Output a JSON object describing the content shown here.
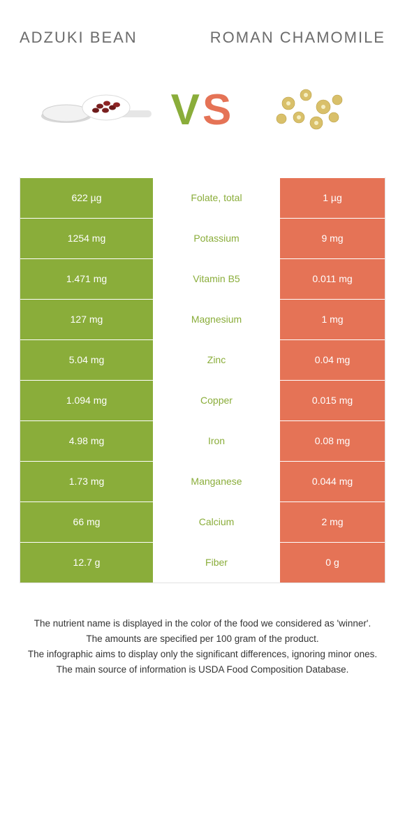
{
  "header": {
    "left_title": "Adzuki bean",
    "right_title": "Roman chamomile"
  },
  "vs": {
    "v": "V",
    "s": "S"
  },
  "colors": {
    "left_bg": "#8aad3a",
    "right_bg": "#e57356",
    "left_text": "#8aad3a",
    "right_text": "#e57356",
    "border": "#e2e2e2",
    "page_bg": "#ffffff",
    "title_text": "#6c6c6c",
    "body_text": "#333333"
  },
  "table": {
    "rows": [
      {
        "left": "622 µg",
        "label": "Folate, total",
        "right": "1 µg",
        "winner": "left"
      },
      {
        "left": "1254 mg",
        "label": "Potassium",
        "right": "9 mg",
        "winner": "left"
      },
      {
        "left": "1.471 mg",
        "label": "Vitamin B5",
        "right": "0.011 mg",
        "winner": "left"
      },
      {
        "left": "127 mg",
        "label": "Magnesium",
        "right": "1 mg",
        "winner": "left"
      },
      {
        "left": "5.04 mg",
        "label": "Zinc",
        "right": "0.04 mg",
        "winner": "left"
      },
      {
        "left": "1.094 mg",
        "label": "Copper",
        "right": "0.015 mg",
        "winner": "left"
      },
      {
        "left": "4.98 mg",
        "label": "Iron",
        "right": "0.08 mg",
        "winner": "left"
      },
      {
        "left": "1.73 mg",
        "label": "Manganese",
        "right": "0.044 mg",
        "winner": "left"
      },
      {
        "left": "66 mg",
        "label": "Calcium",
        "right": "2 mg",
        "winner": "left"
      },
      {
        "left": "12.7 g",
        "label": "Fiber",
        "right": "0 g",
        "winner": "left"
      }
    ]
  },
  "footnotes": [
    "The nutrient name is displayed in the color of the food we considered as 'winner'.",
    "The amounts are specified per 100 gram of the product.",
    "The infographic aims to display only the significant differences, ignoring minor ones.",
    "The main source of information is USDA Food Composition Database."
  ]
}
